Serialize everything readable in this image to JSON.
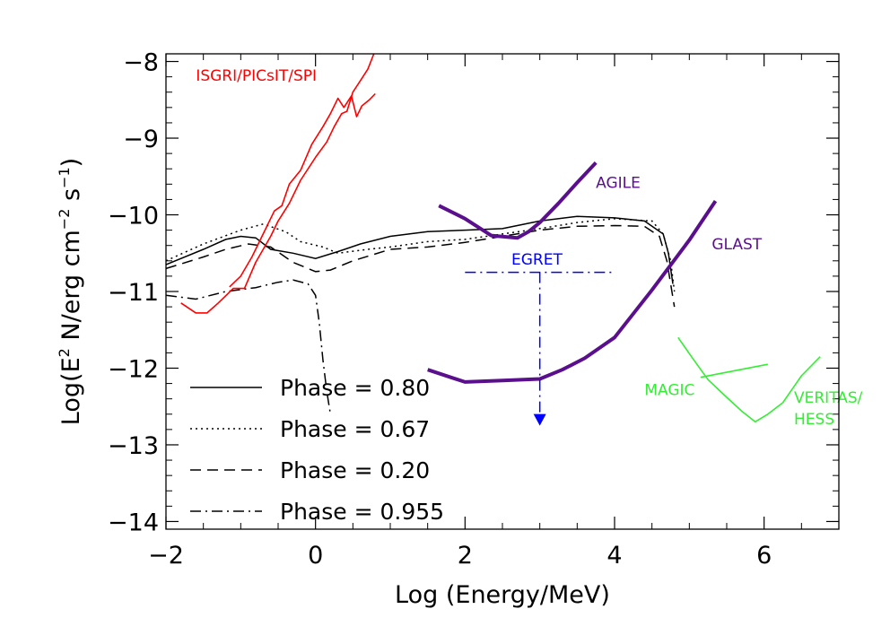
{
  "chart_data": {
    "type": "line",
    "xlabel": "Log (Energy/MeV)",
    "ylabel_parts": [
      "Log(E",
      "2",
      " N/erg cm",
      "−2",
      " s",
      "−1",
      ")"
    ],
    "xlim": [
      -2,
      7
    ],
    "ylim": [
      -14.1,
      -7.9
    ],
    "x_ticks": [
      -2,
      0,
      2,
      4,
      6
    ],
    "x_tick_labels": [
      "−2",
      "0",
      "2",
      "4",
      "6"
    ],
    "y_ticks": [
      -14,
      -13,
      -12,
      -11,
      -10,
      -9,
      -8
    ],
    "y_tick_labels": [
      "−14",
      "−13",
      "−12",
      "−11",
      "−10",
      "−9",
      "−8"
    ],
    "x_minor_step": 0.5,
    "y_minor_step": 0.2,
    "legend_placement": "lower-left",
    "series": [
      {
        "name": "Phase = 0.80",
        "color": "#000000",
        "dash": "solid",
        "points": [
          [
            -2,
            -10.65
          ],
          [
            -1.5,
            -10.45
          ],
          [
            -1.2,
            -10.32
          ],
          [
            -1,
            -10.28
          ],
          [
            -0.8,
            -10.3
          ],
          [
            -0.6,
            -10.45
          ],
          [
            -0.3,
            -10.5
          ],
          [
            0,
            -10.57
          ],
          [
            0.3,
            -10.48
          ],
          [
            0.6,
            -10.38
          ],
          [
            1,
            -10.28
          ],
          [
            1.5,
            -10.22
          ],
          [
            2,
            -10.2
          ],
          [
            2.5,
            -10.18
          ],
          [
            3,
            -10.08
          ],
          [
            3.5,
            -10.02
          ],
          [
            4,
            -10.04
          ],
          [
            4.4,
            -10.08
          ],
          [
            4.65,
            -10.25
          ],
          [
            4.72,
            -10.5
          ],
          [
            4.78,
            -10.9
          ]
        ]
      },
      {
        "name": "Phase = 0.67",
        "color": "#000000",
        "dash": "dotted",
        "points": [
          [
            -2,
            -10.6
          ],
          [
            -1.5,
            -10.38
          ],
          [
            -1,
            -10.2
          ],
          [
            -0.7,
            -10.12
          ],
          [
            -0.4,
            -10.22
          ],
          [
            -0.2,
            -10.35
          ],
          [
            0.1,
            -10.42
          ],
          [
            0.3,
            -10.5
          ],
          [
            0.7,
            -10.45
          ],
          [
            1,
            -10.42
          ],
          [
            1.5,
            -10.35
          ],
          [
            2,
            -10.32
          ],
          [
            2.5,
            -10.25
          ],
          [
            3,
            -10.18
          ],
          [
            3.5,
            -10.1
          ],
          [
            4,
            -10.05
          ],
          [
            4.5,
            -10.08
          ],
          [
            4.65,
            -10.25
          ],
          [
            4.75,
            -10.6
          ],
          [
            4.8,
            -11
          ]
        ]
      },
      {
        "name": "Phase = 0.20",
        "color": "#000000",
        "dash": "dashed",
        "points": [
          [
            -2,
            -10.7
          ],
          [
            -1.5,
            -10.55
          ],
          [
            -1.2,
            -10.45
          ],
          [
            -0.9,
            -10.38
          ],
          [
            -0.6,
            -10.42
          ],
          [
            -0.3,
            -10.62
          ],
          [
            0,
            -10.74
          ],
          [
            0.2,
            -10.72
          ],
          [
            0.5,
            -10.6
          ],
          [
            1,
            -10.45
          ],
          [
            1.5,
            -10.42
          ],
          [
            2,
            -10.36
          ],
          [
            2.5,
            -10.28
          ],
          [
            3,
            -10.2
          ],
          [
            3.5,
            -10.15
          ],
          [
            4,
            -10.14
          ],
          [
            4.4,
            -10.15
          ],
          [
            4.6,
            -10.28
          ],
          [
            4.7,
            -10.6
          ],
          [
            4.8,
            -11.2
          ]
        ]
      },
      {
        "name": "Phase = 0.955",
        "color": "#000000",
        "dash": "dashdot",
        "points": [
          [
            -2,
            -11.05
          ],
          [
            -1.6,
            -11.1
          ],
          [
            -1.2,
            -11
          ],
          [
            -0.8,
            -10.95
          ],
          [
            -0.5,
            -10.88
          ],
          [
            -0.3,
            -10.85
          ],
          [
            -0.1,
            -10.9
          ],
          [
            0,
            -11.05
          ],
          [
            0.05,
            -11.4
          ],
          [
            0.1,
            -11.9
          ],
          [
            0.15,
            -12.3
          ],
          [
            0.2,
            -12.6
          ]
        ]
      }
    ],
    "instrument_curves": [
      {
        "name": "ISGRI/PICsIT/SPI",
        "color": "#ff0000",
        "width": 1.6,
        "lines": [
          [
            [
              -1.8,
              -11.15
            ],
            [
              -1.6,
              -11.28
            ],
            [
              -1.45,
              -11.28
            ],
            [
              -1.3,
              -11.15
            ],
            [
              -1.1,
              -10.96
            ],
            [
              -0.95,
              -10.96
            ],
            [
              -0.8,
              -10.62
            ],
            [
              -0.6,
              -10.28
            ],
            [
              -0.5,
              -10.08
            ],
            [
              -0.35,
              -9.85
            ],
            [
              -0.2,
              -9.55
            ],
            [
              0,
              -9.25
            ],
            [
              0.15,
              -9.05
            ],
            [
              0.25,
              -8.85
            ],
            [
              0.35,
              -8.68
            ],
            [
              0.42,
              -8.65
            ],
            [
              0.5,
              -8.4
            ],
            [
              0.6,
              -8.25
            ],
            [
              0.7,
              -8.1
            ],
            [
              0.78,
              -7.9
            ]
          ],
          [
            [
              -1.15,
              -10.94
            ],
            [
              -1,
              -10.8
            ],
            [
              -0.85,
              -10.55
            ],
            [
              -0.7,
              -10.25
            ],
            [
              -0.55,
              -9.95
            ],
            [
              -0.45,
              -9.88
            ],
            [
              -0.35,
              -9.6
            ],
            [
              -0.2,
              -9.42
            ],
            [
              -0.05,
              -9.08
            ],
            [
              0.1,
              -8.85
            ],
            [
              0.2,
              -8.68
            ],
            [
              0.3,
              -8.48
            ],
            [
              0.38,
              -8.6
            ],
            [
              0.48,
              -8.45
            ],
            [
              0.55,
              -8.72
            ],
            [
              0.62,
              -8.58
            ],
            [
              0.72,
              -8.5
            ],
            [
              0.8,
              -8.42
            ]
          ]
        ],
        "label_pos": [
          -1.6,
          -8.25
        ]
      },
      {
        "name": "AGILE",
        "color": "#5a0f8c",
        "width": 4,
        "lines": [
          [
            [
              1.65,
              -9.88
            ],
            [
              2,
              -10.05
            ],
            [
              2.35,
              -10.27
            ],
            [
              2.7,
              -10.3
            ],
            [
              2.85,
              -10.22
            ],
            [
              3,
              -10.1
            ],
            [
              3.25,
              -9.85
            ],
            [
              3.5,
              -9.58
            ],
            [
              3.75,
              -9.32
            ]
          ]
        ],
        "label_pos": [
          3.75,
          -9.65
        ]
      },
      {
        "name": "GLAST",
        "color": "#5a0f8c",
        "width": 4,
        "lines": [
          [
            [
              1.5,
              -12.02
            ],
            [
              2,
              -12.18
            ],
            [
              2.5,
              -12.16
            ],
            [
              3,
              -12.14
            ],
            [
              3.3,
              -12.02
            ],
            [
              3.6,
              -11.87
            ],
            [
              4,
              -11.6
            ],
            [
              4.5,
              -10.98
            ],
            [
              5,
              -10.33
            ],
            [
              5.35,
              -9.82
            ]
          ]
        ],
        "label_pos": [
          5.3,
          -10.45
        ]
      },
      {
        "name": "MAGIC",
        "color": "#33ee33",
        "width": 1.6,
        "lines": [
          [
            [
              4.85,
              -11.6
            ],
            [
              5.05,
              -11.88
            ],
            [
              5.25,
              -12.15
            ],
            [
              5.5,
              -12.38
            ],
            [
              5.7,
              -12.56
            ],
            [
              5.88,
              -12.7
            ],
            [
              6.05,
              -12.6
            ],
            [
              6.25,
              -12.45
            ]
          ],
          [
            [
              5.15,
              -12.12
            ],
            [
              6.05,
              -11.95
            ]
          ]
        ],
        "label_pos": [
          4.4,
          -12.35
        ]
      },
      {
        "name": "VERITAS/",
        "name2": "HESS",
        "color": "#33ee33",
        "width": 1.6,
        "lines": [
          [
            [
              6.25,
              -12.45
            ],
            [
              6.5,
              -12.1
            ],
            [
              6.75,
              -11.85
            ]
          ]
        ],
        "label_pos": [
          6.4,
          -12.45
        ]
      }
    ],
    "egret": {
      "name": "EGRET",
      "color": "#0000ff",
      "y_level": -10.75,
      "x_range": [
        2,
        4
      ],
      "arrow_x": 3,
      "arrow_to": -12.75,
      "label_pos": [
        2.62,
        -10.65
      ]
    },
    "legend": [
      {
        "label": "Phase = 0.80",
        "dash": "solid"
      },
      {
        "label": "Phase = 0.67",
        "dash": "dotted"
      },
      {
        "label": "Phase = 0.20",
        "dash": "dashed"
      },
      {
        "label": "Phase = 0.955",
        "dash": "dashdot"
      }
    ]
  }
}
